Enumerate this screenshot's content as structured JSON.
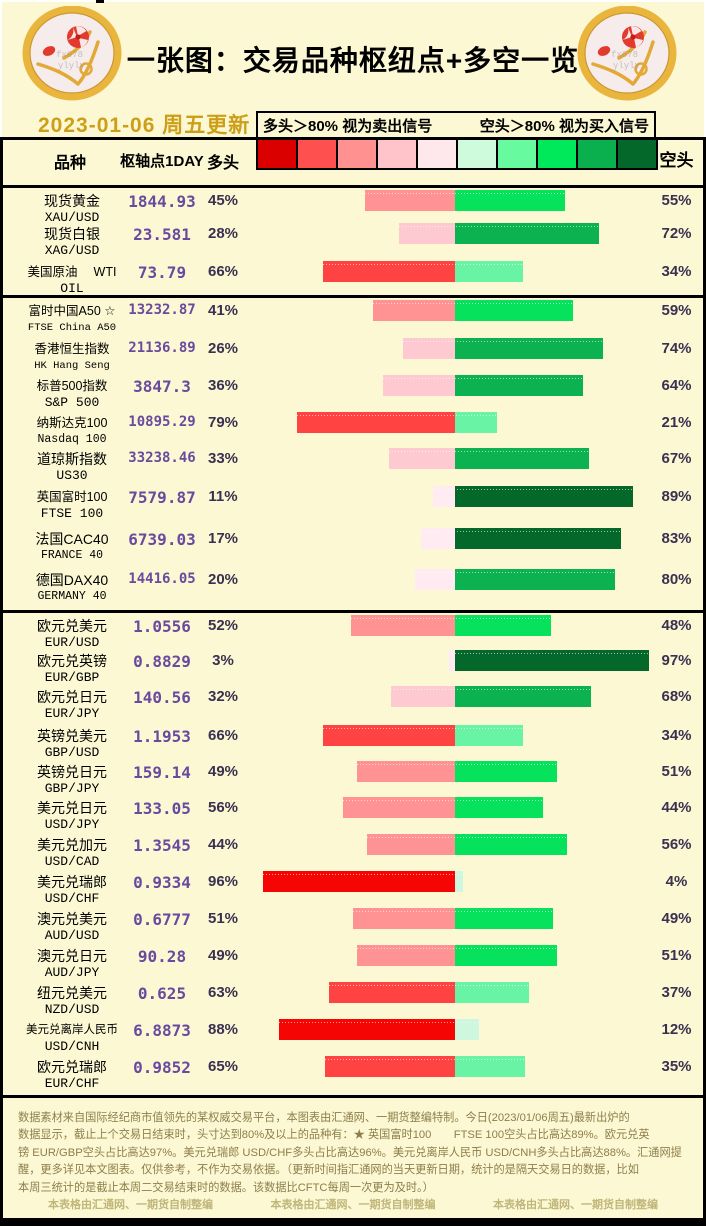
{
  "header": {
    "title": "一张图：交易品种枢纽点+多空一览",
    "date": "2023-01-06 周五更新",
    "legend_long": "多头＞80% 视为卖出信号",
    "legend_short": "空头＞80% 视为买入信号",
    "col_symbol": "品种",
    "col_pivot": "枢轴点1DAY",
    "col_long": "多头",
    "col_short": "空头",
    "scale_colors": [
      "#DB0000",
      "#FF5050",
      "#FF9191",
      "#FFC4CA",
      "#FFE8EC",
      "#CDFBDB",
      "#67FA9F",
      "#00E95B",
      "#09B04D",
      "#04682A"
    ]
  },
  "bar_palette": {
    "long": [
      "#FFEBF1",
      "#FFC9D1",
      "#FF9292",
      "#FF4343",
      "#F60505"
    ],
    "short": [
      "#CFF6DE",
      "#69F3A4",
      "#06E25B",
      "#0CB250",
      "#05682B"
    ]
  },
  "coin": {
    "watermark": [
      "fx678",
      "ylyly"
    ]
  },
  "chart_data": {
    "type": "bar",
    "title": "一张图：交易品种枢纽点+多空一览",
    "series": [
      "多头",
      "空头"
    ],
    "unit": "%",
    "sections": [
      {
        "name": "commodities",
        "rows": [
          {
            "name_cn": "现货黄金",
            "name_en": "XAU/USD",
            "pivot": "1844.93",
            "long": 45,
            "short": 55
          },
          {
            "name_cn": "现货白银",
            "name_en": "XAG/USD",
            "pivot": "23.581",
            "long": 28,
            "short": 72
          },
          {
            "name_cn": "美国原油　 WTI",
            "name_en": "OIL",
            "pivot": "73.79",
            "long": 66,
            "short": 34
          }
        ]
      },
      {
        "name": "indices",
        "rows": [
          {
            "name_cn": "富时中国A50 ☆",
            "name_en": "FTSE China A50",
            "pivot": "13232.87",
            "long": 41,
            "short": 59
          },
          {
            "name_cn": "香港恒生指数",
            "name_en": "HK Hang Seng",
            "pivot": "21136.89",
            "long": 26,
            "short": 74
          },
          {
            "name_cn": "标普500指数",
            "name_en": "S&P 500",
            "pivot": "3847.3",
            "long": 36,
            "short": 64
          },
          {
            "name_cn": "纳斯达克100",
            "name_en": "Nasdaq 100",
            "pivot": "10895.29",
            "long": 79,
            "short": 21
          },
          {
            "name_cn": "道琼斯指数",
            "name_en": "US30",
            "pivot": "33238.46",
            "long": 33,
            "short": 67
          },
          {
            "name_cn": "英国富时100",
            "name_en": "FTSE 100",
            "pivot": "7579.87",
            "long": 11,
            "short": 89
          },
          {
            "name_cn": "法国CAC40",
            "name_en": "FRANCE 40",
            "pivot": "6739.03",
            "long": 17,
            "short": 83
          },
          {
            "name_cn": "德国DAX40",
            "name_en": "GERMANY 40",
            "pivot": "14416.05",
            "long": 20,
            "short": 80
          }
        ]
      },
      {
        "name": "forex",
        "rows": [
          {
            "name_cn": "欧元兑美元",
            "name_en": "EUR/USD",
            "pivot": "1.0556",
            "long": 52,
            "short": 48
          },
          {
            "name_cn": "欧元兑英镑",
            "name_en": "EUR/GBP",
            "pivot": "0.8829",
            "long": 3,
            "short": 97
          },
          {
            "name_cn": "欧元兑日元",
            "name_en": "EUR/JPY",
            "pivot": "140.56",
            "long": 32,
            "short": 68
          },
          {
            "name_cn": "英镑兑美元",
            "name_en": "GBP/USD",
            "pivot": "1.1953",
            "long": 66,
            "short": 34
          },
          {
            "name_cn": "英镑兑日元",
            "name_en": "GBP/JPY",
            "pivot": "159.14",
            "long": 49,
            "short": 51
          },
          {
            "name_cn": "美元兑日元",
            "name_en": "USD/JPY",
            "pivot": "133.05",
            "long": 56,
            "short": 44
          },
          {
            "name_cn": "美元兑加元",
            "name_en": "USD/CAD",
            "pivot": "1.3545",
            "long": 44,
            "short": 56
          },
          {
            "name_cn": "美元兑瑞郎",
            "name_en": "USD/CHF",
            "pivot": "0.9334",
            "long": 96,
            "short": 4
          },
          {
            "name_cn": "澳元兑美元",
            "name_en": "AUD/USD",
            "pivot": "0.6777",
            "long": 51,
            "short": 49
          },
          {
            "name_cn": "澳元兑日元",
            "name_en": "AUD/JPY",
            "pivot": "90.28",
            "long": 49,
            "short": 51
          },
          {
            "name_cn": "纽元兑美元",
            "name_en": "NZD/USD",
            "pivot": "0.625",
            "long": 63,
            "short": 37
          },
          {
            "name_cn": "美元兑离岸人民币",
            "name_en": "USD/CNH",
            "pivot": "6.8873",
            "long": 88,
            "short": 12
          },
          {
            "name_cn": "欧元兑瑞郎",
            "name_en": "EUR/CHF",
            "pivot": "0.9852",
            "long": 65,
            "short": 35
          }
        ]
      }
    ]
  },
  "footer": {
    "disclaimer_lines": [
      "数据素材来自国际经纪商市值领先的某权威交易平台，本图表由汇通网、一期货整编特制。今日(2023/01/06周五)最新出炉的",
      "数据显示，截止上个交易日结束时，头寸达到80%及以上的品种有：★ 英国富时100　　FTSE 100空头占比高达89%。欧元兑英",
      "镑 EUR/GBP空头占比高达97%。美元兑瑞郎 USD/CHF多头占比高达96%。美元兑离岸人民币 USD/CNH多头占比高达88%。汇通网提",
      "醒，更多详见本文图表。仅供参考，不作为交易依据。（更新时间指汇通网的当天更新日期，统计的是隔天交易日的数据，比如",
      "本周三统计的是截止本周二交易结束时的数据。该数据比CFTC每周一次更为及时。）"
    ],
    "credits": [
      "本表格由汇通网、一期货自制整编",
      "本表格由汇通网、一期货自制整编",
      "本表格由汇通网、一期货自制整编"
    ]
  }
}
